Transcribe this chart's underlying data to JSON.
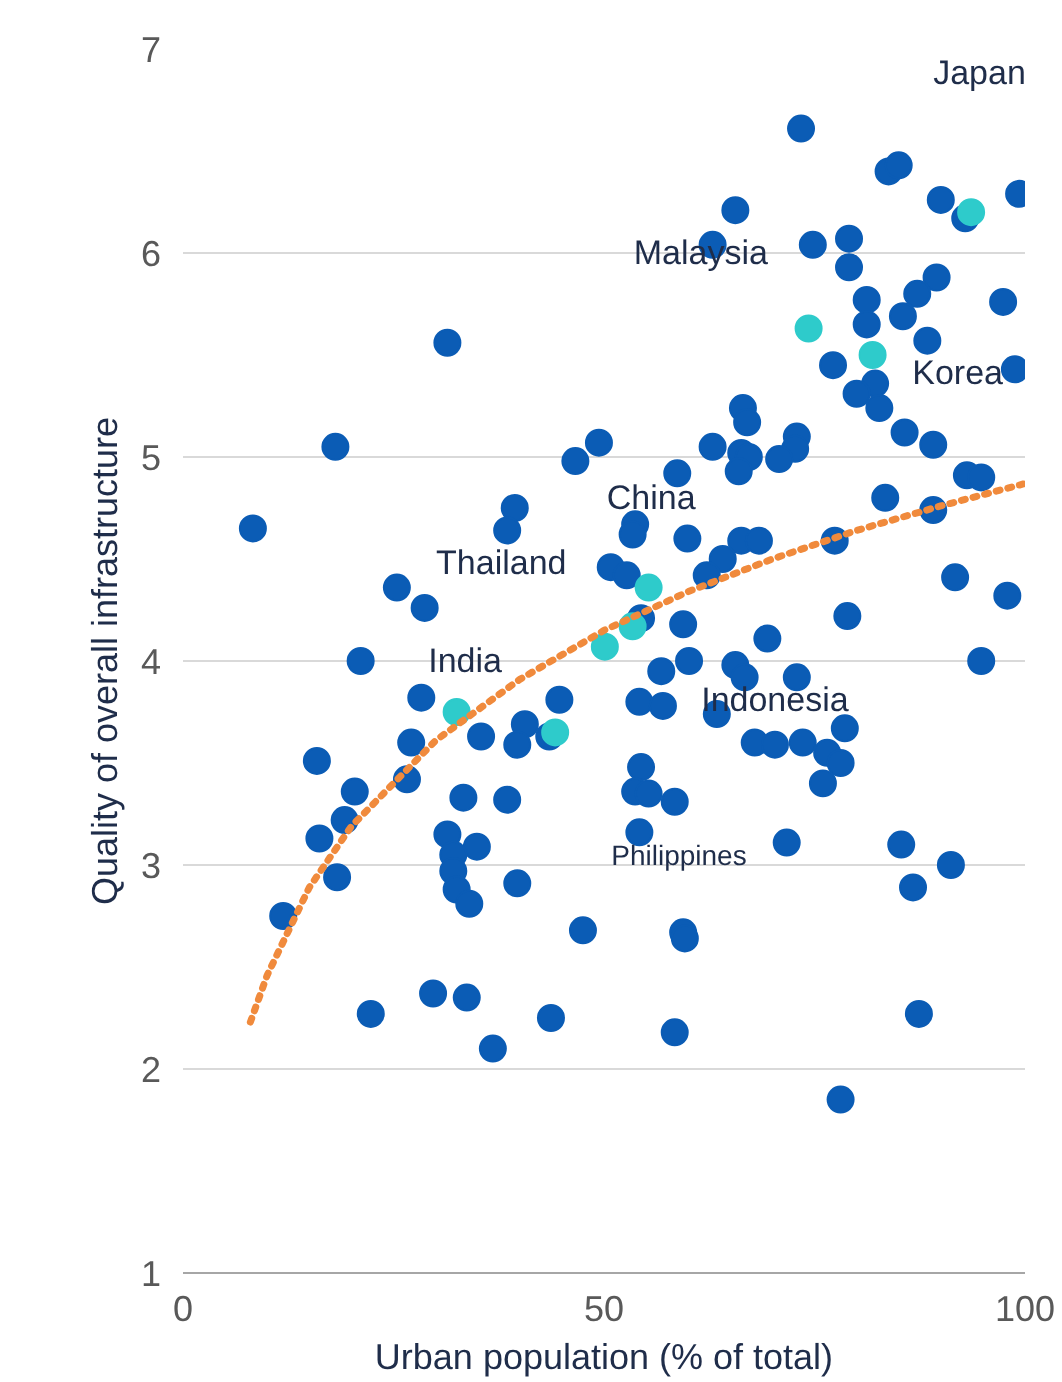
{
  "chart_data": {
    "type": "scatter",
    "xlabel": "Urban population (% of total)",
    "ylabel": "Quality of overall infrastructure",
    "xlim": [
      0,
      100
    ],
    "ylim": [
      1,
      7
    ],
    "xticks": [
      0,
      50,
      100
    ],
    "yticks": [
      1,
      2,
      3,
      4,
      5,
      6,
      7
    ],
    "grid": "y",
    "series": [
      {
        "color": "#0b5cb5",
        "marker": "circle",
        "x": [
          8.3,
          18.1,
          31.4,
          46.6,
          49.4,
          39.4,
          38.5,
          25.4,
          28.7,
          21.1,
          50.8,
          28.3,
          44.7,
          35.4,
          40.6,
          39.7,
          43.5,
          27.1,
          15.9,
          20.4,
          26.6,
          33.3,
          38.5,
          19.2,
          16.2,
          31.4,
          34.9,
          32.1,
          18.3,
          32.1,
          32.5,
          34.0,
          39.7,
          11.9,
          47.5,
          22.3,
          29.7,
          33.7,
          43.7,
          36.8,
          73.4,
          83.8,
          85.0,
          90.0,
          92.9,
          99.3,
          65.6,
          62.9,
          74.8,
          79.1,
          79.1,
          89.5,
          87.2,
          81.2,
          85.5,
          81.2,
          97.4,
          88.4,
          77.2,
          98.8,
          82.2,
          80.0,
          82.7,
          66.5,
          67.0,
          85.7,
          89.1,
          62.9,
          66.3,
          67.2,
          72.9,
          72.7,
          70.8,
          66.0,
          58.7,
          93.1,
          94.8,
          83.4,
          89.1,
          53.7,
          53.4,
          59.9,
          66.3,
          68.4,
          77.4,
          64.1,
          52.7,
          62.2,
          91.7,
          97.9,
          54.4,
          59.4,
          69.4,
          78.9,
          94.8,
          60.1,
          65.6,
          56.8,
          66.7,
          72.9,
          54.2,
          57.0,
          63.4,
          78.6,
          67.9,
          70.3,
          73.6,
          76.5,
          78.1,
          76.0,
          54.4,
          53.7,
          55.3,
          58.4,
          54.2,
          71.7,
          85.3,
          91.2,
          86.7,
          59.4,
          59.6,
          58.4,
          87.4,
          78.1
        ],
        "values": [
          4.65,
          5.05,
          5.56,
          4.98,
          5.07,
          4.75,
          4.64,
          4.36,
          4.26,
          4.0,
          4.46,
          3.82,
          3.81,
          3.63,
          3.69,
          3.59,
          3.63,
          3.6,
          3.51,
          3.36,
          3.42,
          3.33,
          3.32,
          3.22,
          3.13,
          3.15,
          3.09,
          3.05,
          2.94,
          2.97,
          2.88,
          2.81,
          2.91,
          2.75,
          2.68,
          2.27,
          2.37,
          2.35,
          2.25,
          2.1,
          6.61,
          6.4,
          6.43,
          6.26,
          6.17,
          6.29,
          6.21,
          6.04,
          6.04,
          6.07,
          5.93,
          5.88,
          5.8,
          5.77,
          5.69,
          5.65,
          5.76,
          5.57,
          5.45,
          5.43,
          5.36,
          5.31,
          5.24,
          5.24,
          5.17,
          5.12,
          5.06,
          5.05,
          5.02,
          5.0,
          5.1,
          5.04,
          4.99,
          4.93,
          4.92,
          4.91,
          4.9,
          4.8,
          4.74,
          4.67,
          4.62,
          4.6,
          4.59,
          4.59,
          4.59,
          4.5,
          4.42,
          4.42,
          4.41,
          4.32,
          4.21,
          4.18,
          4.11,
          4.22,
          4.0,
          4.0,
          3.98,
          3.95,
          3.92,
          3.92,
          3.8,
          3.78,
          3.74,
          3.67,
          3.6,
          3.59,
          3.6,
          3.55,
          3.5,
          3.4,
          3.48,
          3.36,
          3.35,
          3.31,
          3.16,
          3.11,
          3.1,
          3.0,
          2.89,
          2.67,
          2.64,
          2.18,
          2.27,
          1.85
        ]
      },
      {
        "color": "#2ecbcb",
        "marker": "circle",
        "x": [
          32.5,
          44.2,
          50.1,
          53.4,
          55.3,
          74.3,
          81.9,
          93.6
        ],
        "values": [
          3.75,
          3.65,
          4.07,
          4.17,
          4.36,
          5.63,
          5.5,
          6.2
        ]
      },
      {
        "type": "line",
        "line_style": "dotted",
        "color": "#f08a3c",
        "x": [
          8,
          10,
          15,
          20,
          30,
          40,
          50,
          60,
          70,
          80,
          90,
          100
        ],
        "values": [
          2.23,
          2.46,
          2.89,
          3.19,
          3.61,
          3.91,
          4.15,
          4.34,
          4.5,
          4.64,
          4.76,
          4.87
        ]
      }
    ],
    "annotations": [
      "Japan",
      "Malaysia",
      "Korea",
      "China",
      "Thailand",
      "India",
      "Indonesia",
      "Philippines"
    ]
  }
}
